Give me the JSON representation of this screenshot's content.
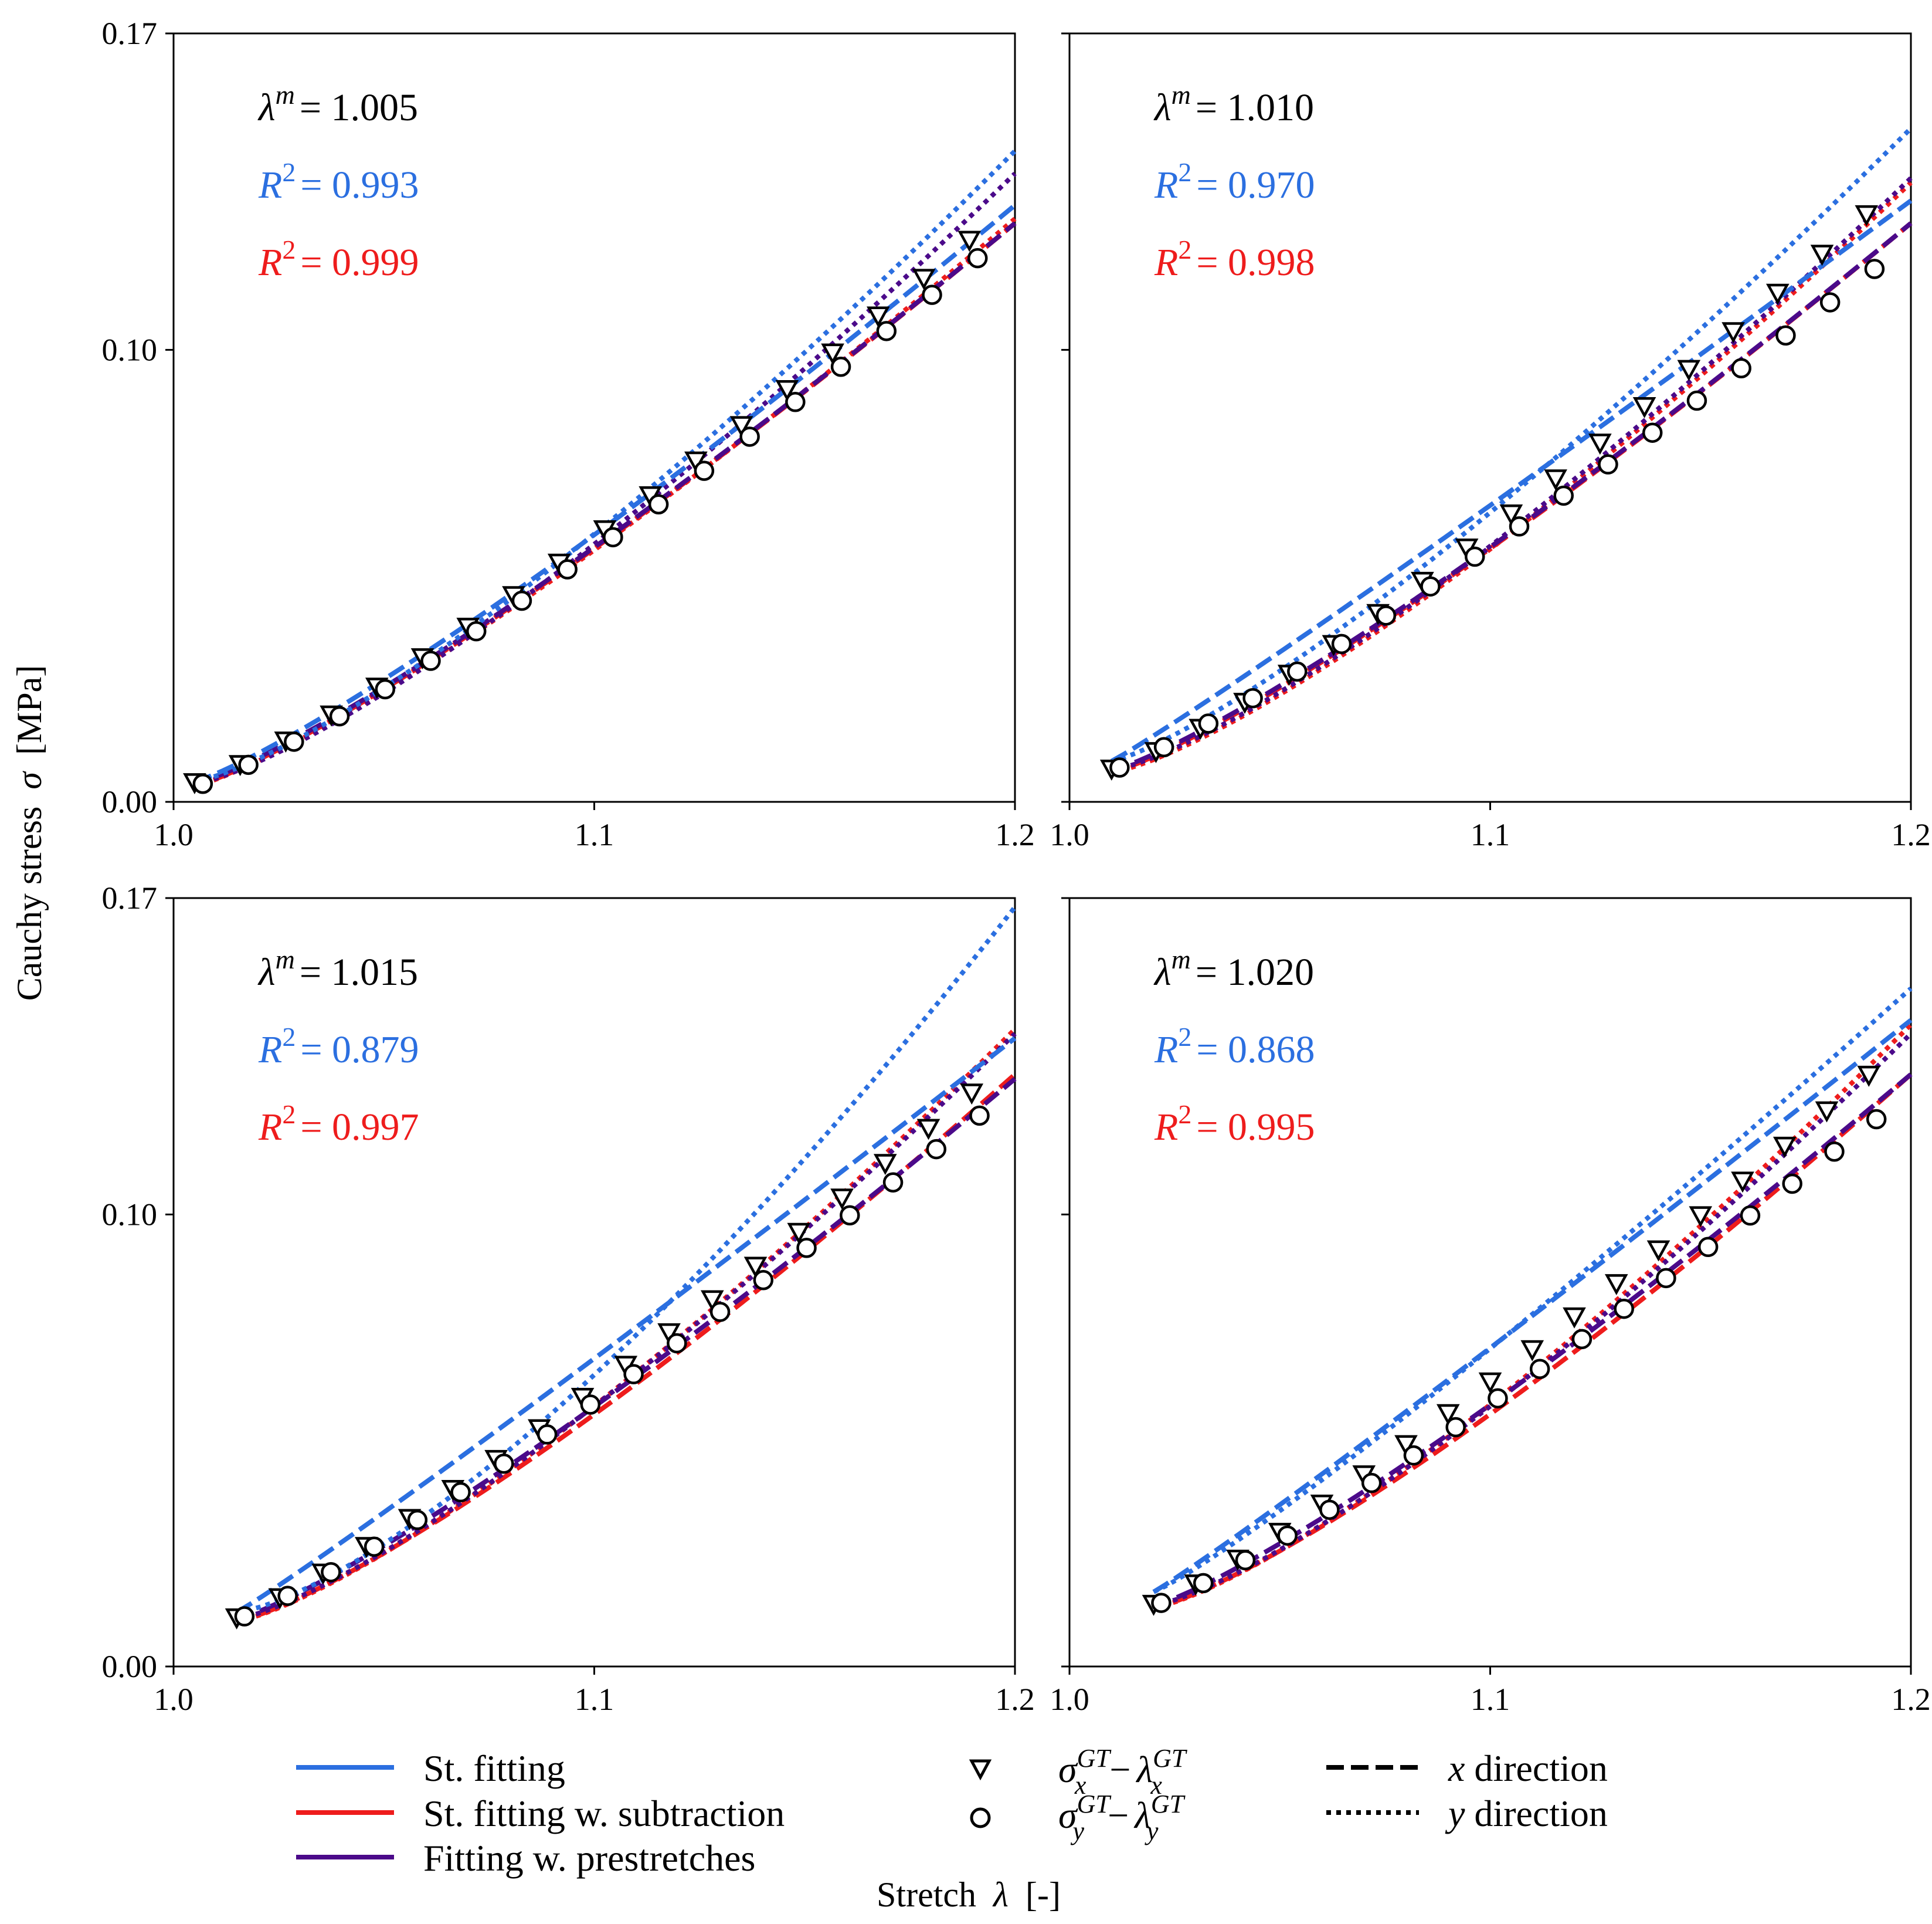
{
  "chart_data": {
    "type": "line",
    "ylabel_prefix": "Cauchy stress",
    "ylabel_symbol": "σ",
    "ylabel_unit": "[MPa]",
    "xlabel_prefix": "Stretch",
    "xlabel_symbol": "λ",
    "xlabel_unit": "[-]",
    "xlim": [
      1.0,
      1.2
    ],
    "ylim": [
      0.0,
      0.17
    ],
    "xticks": [
      "1.0",
      "1.1",
      "1.2"
    ],
    "yticks": [
      "0.00",
      "0.10",
      "0.17"
    ],
    "xtick_values": [
      1.0,
      1.1,
      1.2
    ],
    "ytick_values": [
      0.0,
      0.1,
      0.17
    ],
    "colors": {
      "st_fitting": "#2b6fe0",
      "st_subtraction": "#ee1c1c",
      "prestretch": "#4b0a8a",
      "markers": "#000000"
    },
    "legend": {
      "series": [
        "St. fitting",
        "St. fitting w. subtraction",
        "Fitting w. prestretches"
      ],
      "markers": [
        {
          "shape": "triangle-down",
          "base": "σ",
          "sub": "x",
          "sup": "GT",
          "minus": "−",
          "lambda": "λ"
        },
        {
          "shape": "circle",
          "base": "σ",
          "sub": "y",
          "sup": "GT",
          "minus": "−",
          "lambda": "λ"
        }
      ],
      "styles": [
        {
          "line": "dashed",
          "var": "x",
          "label": "direction"
        },
        {
          "line": "dotted",
          "var": "y",
          "label": "direction"
        }
      ]
    },
    "panels": [
      {
        "lambda_m_symbol": "λ",
        "lambda_m_sup": "m",
        "lambda_m": "= 1.005",
        "r2_symbol": "R",
        "r2_sup": "2",
        "r2_blue": "= 0.993",
        "r2_red": "= 0.999",
        "x_start": 1.005,
        "gt_x": {
          "y0": 0.0045,
          "y1": 0.133,
          "p": 1.2
        },
        "gt_y": {
          "y0": 0.0035,
          "y1": 0.127,
          "p": 1.2
        },
        "blue_x": {
          "y0": 0.0045,
          "y1": 0.132,
          "p": 1.18
        },
        "blue_y": {
          "y0": 0.0045,
          "y1": 0.144,
          "p": 1.3
        },
        "red_x": {
          "y0": 0.0035,
          "y1": 0.128,
          "p": 1.2
        },
        "red_y": {
          "y0": 0.0035,
          "y1": 0.129,
          "p": 1.22
        },
        "purple_x": {
          "y0": 0.004,
          "y1": 0.128,
          "p": 1.2
        },
        "purple_y": {
          "y0": 0.004,
          "y1": 0.139,
          "p": 1.3
        }
      },
      {
        "lambda_m_symbol": "λ",
        "lambda_m_sup": "m",
        "lambda_m": "= 1.010",
        "r2_symbol": "R",
        "r2_sup": "2",
        "r2_blue": "= 0.970",
        "r2_red": "= 0.998",
        "x_start": 1.01,
        "gt_x": {
          "y0": 0.0075,
          "y1": 0.139,
          "p": 1.22
        },
        "gt_y": {
          "y0": 0.007,
          "y1": 0.124,
          "p": 1.15
        },
        "blue_x": {
          "y0": 0.009,
          "y1": 0.133,
          "p": 1.05
        },
        "blue_y": {
          "y0": 0.009,
          "y1": 0.149,
          "p": 1.25
        },
        "red_x": {
          "y0": 0.0065,
          "y1": 0.128,
          "p": 1.2
        },
        "red_y": {
          "y0": 0.0065,
          "y1": 0.137,
          "p": 1.3
        },
        "purple_x": {
          "y0": 0.007,
          "y1": 0.128,
          "p": 1.2
        },
        "purple_y": {
          "y0": 0.007,
          "y1": 0.138,
          "p": 1.3
        }
      },
      {
        "lambda_m_symbol": "λ",
        "lambda_m_sup": "m",
        "lambda_m": "= 1.015",
        "r2_symbol": "R",
        "r2_sup": "2",
        "r2_blue": "= 0.879",
        "r2_red": "= 0.997",
        "x_start": 1.015,
        "gt_x": {
          "y0": 0.011,
          "y1": 0.135,
          "p": 1.15
        },
        "gt_y": {
          "y0": 0.0105,
          "y1": 0.128,
          "p": 1.15
        },
        "blue_x": {
          "y0": 0.012,
          "y1": 0.139,
          "p": 1.05
        },
        "blue_y": {
          "y0": 0.012,
          "y1": 0.168,
          "p": 1.4
        },
        "red_x": {
          "y0": 0.01,
          "y1": 0.131,
          "p": 1.25
        },
        "red_y": {
          "y0": 0.01,
          "y1": 0.141,
          "p": 1.3
        },
        "purple_x": {
          "y0": 0.0105,
          "y1": 0.13,
          "p": 1.2
        },
        "purple_y": {
          "y0": 0.0105,
          "y1": 0.14,
          "p": 1.3
        }
      },
      {
        "lambda_m_symbol": "λ",
        "lambda_m_sup": "m",
        "lambda_m": "= 1.020",
        "r2_symbol": "R",
        "r2_sup": "2",
        "r2_blue": "= 0.868",
        "r2_red": "= 0.995",
        "x_start": 1.02,
        "gt_x": {
          "y0": 0.014,
          "y1": 0.139,
          "p": 1.15
        },
        "gt_y": {
          "y0": 0.0135,
          "y1": 0.127,
          "p": 1.15
        },
        "blue_x": {
          "y0": 0.0165,
          "y1": 0.143,
          "p": 1.05
        },
        "blue_y": {
          "y0": 0.0165,
          "y1": 0.15,
          "p": 1.12
        },
        "red_x": {
          "y0": 0.013,
          "y1": 0.131,
          "p": 1.25
        },
        "red_y": {
          "y0": 0.013,
          "y1": 0.142,
          "p": 1.3
        },
        "purple_x": {
          "y0": 0.0135,
          "y1": 0.131,
          "p": 1.2
        },
        "purple_y": {
          "y0": 0.0135,
          "y1": 0.14,
          "p": 1.3
        }
      }
    ]
  }
}
